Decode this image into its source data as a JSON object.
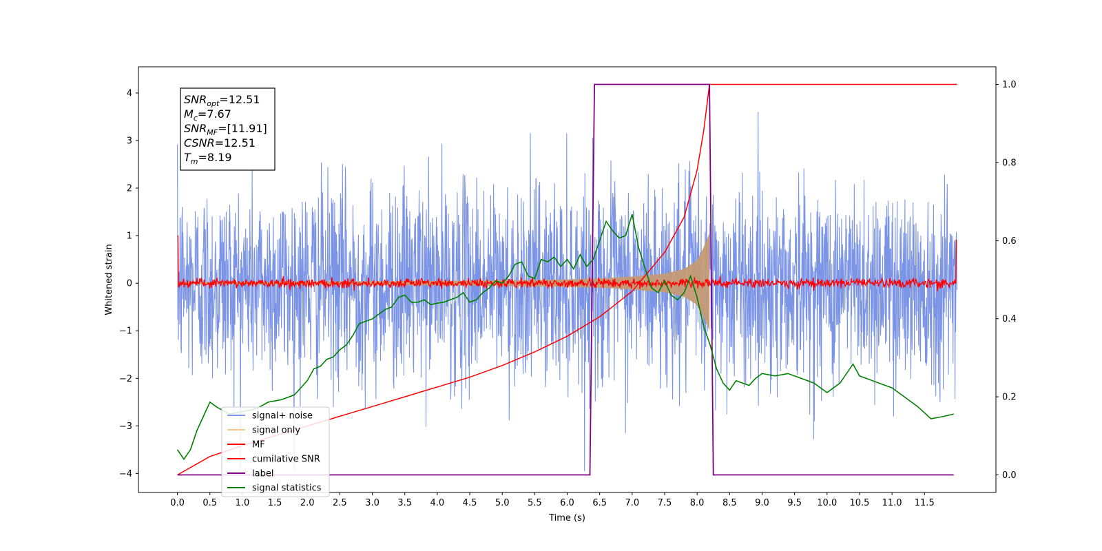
{
  "chart_data": {
    "type": "line",
    "xlabel": "Time (s)",
    "ylabel": "Whitened strain",
    "xlim": [
      -0.6,
      12.6
    ],
    "ylim": [
      -4.4,
      4.55
    ],
    "y2lim": [
      -0.045,
      1.045
    ],
    "x_ticks": [
      0.0,
      0.5,
      1.0,
      1.5,
      2.0,
      2.5,
      3.0,
      3.5,
      4.0,
      4.5,
      5.0,
      5.5,
      6.0,
      6.5,
      7.0,
      7.5,
      8.0,
      8.5,
      9.0,
      9.5,
      10.0,
      10.5,
      11.0,
      11.5
    ],
    "x_tick_labels": [
      "0.0",
      "0.5",
      "1.0",
      "1.5",
      "2.0",
      "2.5",
      "3.0",
      "3.5",
      "4.0",
      "4.5",
      "5.0",
      "5.5",
      "6.0",
      "6.5",
      "7.0",
      "7.5",
      "8.0",
      "8.5",
      "9.0",
      "9.5",
      "10.0",
      "10.5",
      "11.0",
      "11.5"
    ],
    "y_ticks": [
      -4,
      -3,
      -2,
      -1,
      0,
      1,
      2,
      3,
      4
    ],
    "y_tick_labels": [
      "−4",
      "−3",
      "−2",
      "−1",
      "0",
      "1",
      "2",
      "3",
      "4"
    ],
    "y2_ticks": [
      0.0,
      0.2,
      0.4,
      0.6,
      0.8,
      1.0
    ],
    "y2_tick_labels": [
      "0.0",
      "0.2",
      "0.4",
      "0.6",
      "0.8",
      "1.0"
    ],
    "grid": false,
    "legend_placement": "lower-left",
    "duration_s": 12.0,
    "merger_time_s": 8.19,
    "series": [
      {
        "name": "signal+ noise",
        "color": "#7b94e6",
        "axis": "left",
        "description_values": "whitened noise, approx. amplitude ±3.5"
      },
      {
        "name": "signal only",
        "color": "#f4c88a",
        "axis": "left",
        "envelope": [
          [
            0.0,
            0.02
          ],
          [
            3.0,
            0.04
          ],
          [
            5.0,
            0.06
          ],
          [
            6.0,
            0.08
          ],
          [
            6.5,
            0.1
          ],
          [
            7.0,
            0.14
          ],
          [
            7.5,
            0.2
          ],
          [
            7.8,
            0.3
          ],
          [
            8.0,
            0.48
          ],
          [
            8.1,
            0.75
          ],
          [
            8.19,
            1.05
          ]
        ]
      },
      {
        "name": "MF",
        "color": "#ff0000",
        "axis": "left",
        "description_values": "matched filter output near 0, spikes to 1.0 at edges"
      },
      {
        "name": "cumilative SNR",
        "color": "#ff0000",
        "axis": "right",
        "x": [
          0.0,
          0.5,
          1.0,
          1.5,
          2.0,
          2.5,
          3.0,
          3.5,
          4.0,
          4.5,
          5.0,
          5.5,
          6.0,
          6.5,
          7.0,
          7.5,
          7.8,
          8.0,
          8.1,
          8.19,
          8.2,
          12.0
        ],
        "y": [
          0.0,
          0.047,
          0.075,
          0.1,
          0.125,
          0.15,
          0.175,
          0.2,
          0.225,
          0.25,
          0.28,
          0.315,
          0.355,
          0.405,
          0.47,
          0.57,
          0.66,
          0.78,
          0.88,
          1.0,
          1.0,
          1.0
        ]
      },
      {
        "name": "label",
        "color": "#800080",
        "axis": "right",
        "x": [
          0.0,
          6.35,
          6.42,
          8.19,
          8.25,
          11.95
        ],
        "y": [
          0,
          0,
          1,
          1,
          0,
          0
        ]
      },
      {
        "name": "signal statistics",
        "color": "#008000",
        "axis": "left",
        "x": [
          0.0,
          0.1,
          0.2,
          0.3,
          0.4,
          0.5,
          0.6,
          0.8,
          1.0,
          1.2,
          1.4,
          1.6,
          1.8,
          2.0,
          2.1,
          2.2,
          2.3,
          2.4,
          2.5,
          2.6,
          2.7,
          2.8,
          2.9,
          3.0,
          3.1,
          3.2,
          3.3,
          3.4,
          3.5,
          3.6,
          3.7,
          3.8,
          3.9,
          4.0,
          4.1,
          4.2,
          4.3,
          4.4,
          4.5,
          4.6,
          4.7,
          4.8,
          4.9,
          5.0,
          5.1,
          5.2,
          5.3,
          5.4,
          5.5,
          5.6,
          5.7,
          5.8,
          5.9,
          6.0,
          6.1,
          6.2,
          6.3,
          6.4,
          6.5,
          6.6,
          6.7,
          6.8,
          6.9,
          7.0,
          7.1,
          7.2,
          7.3,
          7.4,
          7.5,
          7.6,
          7.7,
          7.8,
          7.9,
          8.0,
          8.1,
          8.2,
          8.3,
          8.4,
          8.5,
          8.6,
          8.7,
          8.8,
          8.9,
          9.0,
          9.2,
          9.4,
          9.6,
          9.8,
          10.0,
          10.2,
          10.4,
          10.5,
          10.6,
          10.8,
          11.0,
          11.2,
          11.4,
          11.6,
          11.8,
          11.95
        ],
        "y": [
          -3.5,
          -3.7,
          -3.5,
          -3.1,
          -2.8,
          -2.5,
          -2.6,
          -2.75,
          -2.7,
          -2.65,
          -2.5,
          -2.45,
          -2.35,
          -2.05,
          -1.8,
          -1.75,
          -1.6,
          -1.55,
          -1.4,
          -1.3,
          -1.1,
          -0.85,
          -0.8,
          -0.75,
          -0.65,
          -0.55,
          -0.5,
          -0.3,
          -0.25,
          -0.4,
          -0.4,
          -0.35,
          -0.45,
          -0.42,
          -0.4,
          -0.35,
          -0.3,
          -0.2,
          -0.4,
          -0.35,
          -0.2,
          -0.1,
          0.05,
          0.0,
          0.15,
          0.4,
          0.45,
          0.15,
          0.1,
          0.5,
          0.45,
          0.55,
          0.35,
          0.5,
          0.3,
          0.6,
          0.35,
          0.5,
          0.9,
          1.3,
          1.1,
          0.95,
          1.0,
          1.45,
          0.75,
          0.3,
          -0.1,
          -0.2,
          0.05,
          -0.25,
          -0.35,
          -0.2,
          0.15,
          -0.3,
          -0.9,
          -1.3,
          -1.8,
          -2.1,
          -2.25,
          -2.05,
          -2.1,
          -2.15,
          -2.0,
          -1.9,
          -1.95,
          -1.9,
          -2.0,
          -2.1,
          -2.3,
          -2.1,
          -1.7,
          -1.95,
          -2.0,
          -2.1,
          -2.2,
          -2.4,
          -2.6,
          -2.85,
          -2.8,
          -2.75
        ]
      }
    ],
    "annotations": [
      {
        "text": "SNR",
        "subscript": "opt",
        "value": "=12.51"
      },
      {
        "text": "M",
        "subscript": "c",
        "value": "=7.67"
      },
      {
        "text": "SNR",
        "subscript": "MF",
        "value": "=[11.91]"
      },
      {
        "text": "CSNR",
        "subscript": "",
        "value": "=12.51"
      },
      {
        "text": "T",
        "subscript": "m",
        "value": "=8.19"
      }
    ]
  }
}
